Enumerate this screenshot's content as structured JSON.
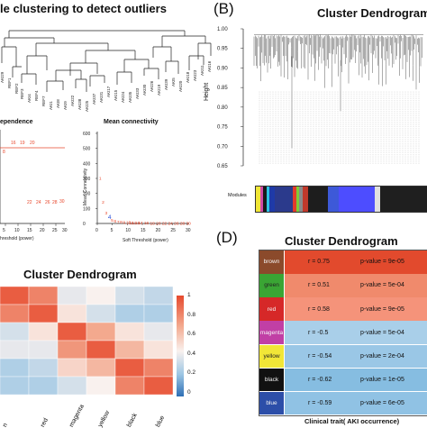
{
  "panel_a": {
    "title": "le clustering to detect outliers",
    "leaf_labels": [
      "AKI1",
      "AKI2",
      "AKI3",
      "AKI4",
      "AKI5",
      "AKI6",
      "AKI7",
      "AKI8",
      "AKI9",
      "AKI10",
      "AKI11",
      "AKI12",
      "AKI13",
      "AKI14",
      "AKI15",
      "AKI16",
      "AKI17",
      "AKI18",
      "AKI19",
      "AKI20",
      "AKI21",
      "AKI22",
      "AKI23",
      "AKI24",
      "AKI25",
      "AKI26",
      "AKI27",
      "AKI28",
      "AKI29",
      "AKI30",
      "AKI31",
      "AKI32",
      "AKI33",
      "AKI34",
      "AKI35",
      "AKI36",
      "AKI37",
      "AKI38",
      "AKI39",
      "REF1",
      "REF2",
      "REF3",
      "REF4",
      "REF5",
      "REF6",
      "REF7"
    ]
  },
  "scale_independence": {
    "title": "ependence",
    "xlabel": "hreshold (power)",
    "x_ticks": [
      "5",
      "10",
      "15",
      "20",
      "25",
      "30"
    ],
    "point_labels": [
      "19",
      "20",
      "26",
      "24",
      "22",
      "26",
      "28",
      "30",
      "31",
      "16",
      "18"
    ]
  },
  "mean_connectivity": {
    "title": "Mean connectivity",
    "ylabel": "Mean Connectivity",
    "xlabel": "Soft Threshold (power)",
    "y_ticks": [
      "0",
      "100",
      "200",
      "300",
      "400",
      "500",
      "600"
    ],
    "x_ticks": [
      "0",
      "5",
      "10",
      "15",
      "20",
      "25",
      "30"
    ],
    "chart_data": {
      "type": "scatter",
      "x": [
        1,
        2,
        3,
        4,
        5,
        6,
        7,
        8,
        9,
        10,
        11,
        12,
        13,
        14,
        16,
        18,
        20,
        22,
        24,
        26,
        28,
        30
      ],
      "y": [
        300,
        140,
        70,
        40,
        22,
        15,
        10,
        8,
        6,
        5,
        4,
        3,
        3,
        2,
        2,
        1,
        1,
        1,
        1,
        1,
        1,
        1
      ],
      "xlim": [
        0,
        30
      ],
      "ylim": [
        0,
        600
      ]
    },
    "point_labels": [
      "2",
      "3",
      "4",
      "5",
      "6",
      "7",
      "8",
      "9 10",
      "11 12",
      "13",
      "14",
      "16",
      "18",
      "20",
      "22",
      "24",
      "26",
      "28",
      "30"
    ]
  },
  "panel_b": {
    "letter": "(B)",
    "title": "Cluster Dendrogram",
    "ylabel": "Height",
    "y_ticks": [
      "0.65",
      "0.70",
      "0.75",
      "0.80",
      "0.85",
      "0.90",
      "0.95",
      "1.00"
    ],
    "color_bar_label": "Modules",
    "module_colors": [
      "#f1e637",
      "#d14aa6",
      "#1a1a1a",
      "#2ec4e5",
      "#1e3aa8",
      "#2b3a8c",
      "#e23a2b",
      "#7ccc3a",
      "#8a8a8a",
      "#c0392b",
      "#1d1d1d",
      "#3d59d8",
      "#4d4dff",
      "#e0e0e0",
      "#1f1f1f"
    ]
  },
  "panel_c": {
    "title": "Cluster Dendrogram",
    "x_labels": [
      "n",
      "red",
      "magenta",
      "yellow",
      "black",
      "blue"
    ],
    "legend_ticks": [
      "1",
      "0.8",
      "0.6",
      "0.4",
      "0.2",
      "0"
    ],
    "legend_colors": [
      "#e64a2e",
      "#f3a98e",
      "#f9f1ee",
      "#9dc6e4",
      "#2e6fb5"
    ],
    "chart_data": {
      "type": "heatmap",
      "columns": [
        "brown",
        "red",
        "magenta",
        "yellow",
        "black",
        "blue"
      ],
      "values": [
        [
          0.95,
          0.85,
          0.45,
          0.5,
          0.4,
          0.35
        ],
        [
          0.85,
          0.95,
          0.55,
          0.4,
          0.3,
          0.3
        ],
        [
          0.4,
          0.55,
          0.95,
          0.75,
          0.55,
          0.45
        ],
        [
          0.45,
          0.45,
          0.8,
          0.95,
          0.7,
          0.55
        ],
        [
          0.3,
          0.35,
          0.6,
          0.7,
          0.95,
          0.85
        ],
        [
          0.3,
          0.3,
          0.4,
          0.5,
          0.85,
          0.95
        ]
      ]
    }
  },
  "panel_d": {
    "letter": "(D)",
    "title": "Cluster Dendrogram",
    "xlabel": "Clinical trait( AKI occurrence)",
    "rows": [
      {
        "module": "brown",
        "module_color": "#8b4a2b",
        "cell_color": "#e24a2d",
        "r": "r = 0.75",
        "p": "p-value = 9e-05"
      },
      {
        "module": "green",
        "module_color": "#3aa534",
        "cell_color": "#f08a6c",
        "r": "r = 0.51",
        "p": "p-value = 5e-04"
      },
      {
        "module": "red",
        "module_color": "#d62828",
        "cell_color": "#f5937a",
        "r": "r = 0.58",
        "p": "p-value = 9e-05"
      },
      {
        "module": "magenta",
        "module_color": "#c13fa5",
        "cell_color": "#a9cfe9",
        "r": "r = -0.5",
        "p": "p-value = 5e-04"
      },
      {
        "module": "yellow",
        "module_color": "#f1e637",
        "cell_color": "#9ac7e6",
        "r": "r = -0.54",
        "p": "p-value = 2e-04"
      },
      {
        "module": "black",
        "module_color": "#111111",
        "cell_color": "#86bde1",
        "r": "r = -0.62",
        "p": "p-value = 1e-05"
      },
      {
        "module": "blue",
        "module_color": "#2c4ea8",
        "cell_color": "#90c2e4",
        "r": "r = -0.59",
        "p": "p-value = 6e-05"
      }
    ]
  }
}
